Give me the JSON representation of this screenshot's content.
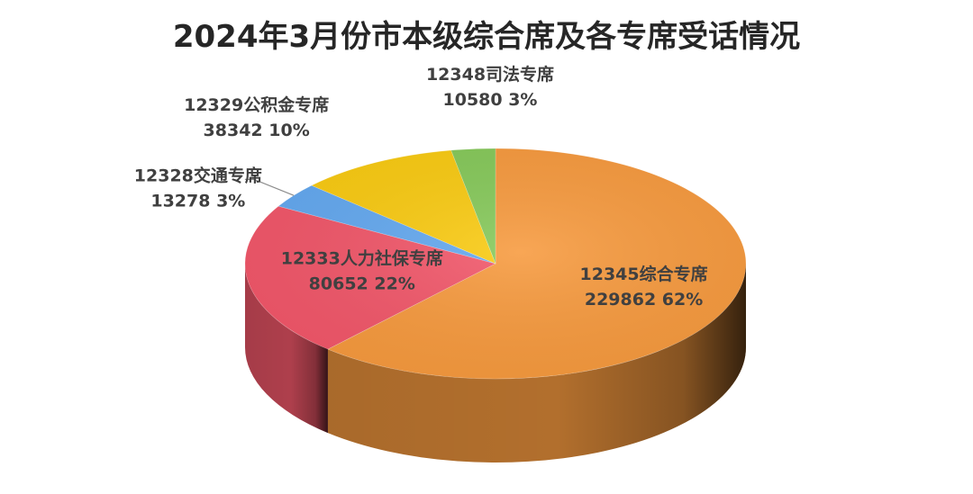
{
  "chart_data": {
    "type": "pie",
    "title": "2024年3月份市本级综合席及各专席受话情况",
    "slices": [
      {
        "name": "12345综合专席",
        "value": 229862,
        "percent": "62%",
        "color": "#F79A3E"
      },
      {
        "name": "12333人力社保专席",
        "value": 80652,
        "percent": "22%",
        "color": "#F2576A"
      },
      {
        "name": "12328交通专席",
        "value": 13278,
        "percent": "3%",
        "color": "#64A9F0"
      },
      {
        "name": "12329公积金专席",
        "value": 38342,
        "percent": "10%",
        "color": "#FACB12"
      },
      {
        "name": "12348司法专席",
        "value": 10580,
        "percent": "3%",
        "color": "#86C95A"
      }
    ]
  }
}
